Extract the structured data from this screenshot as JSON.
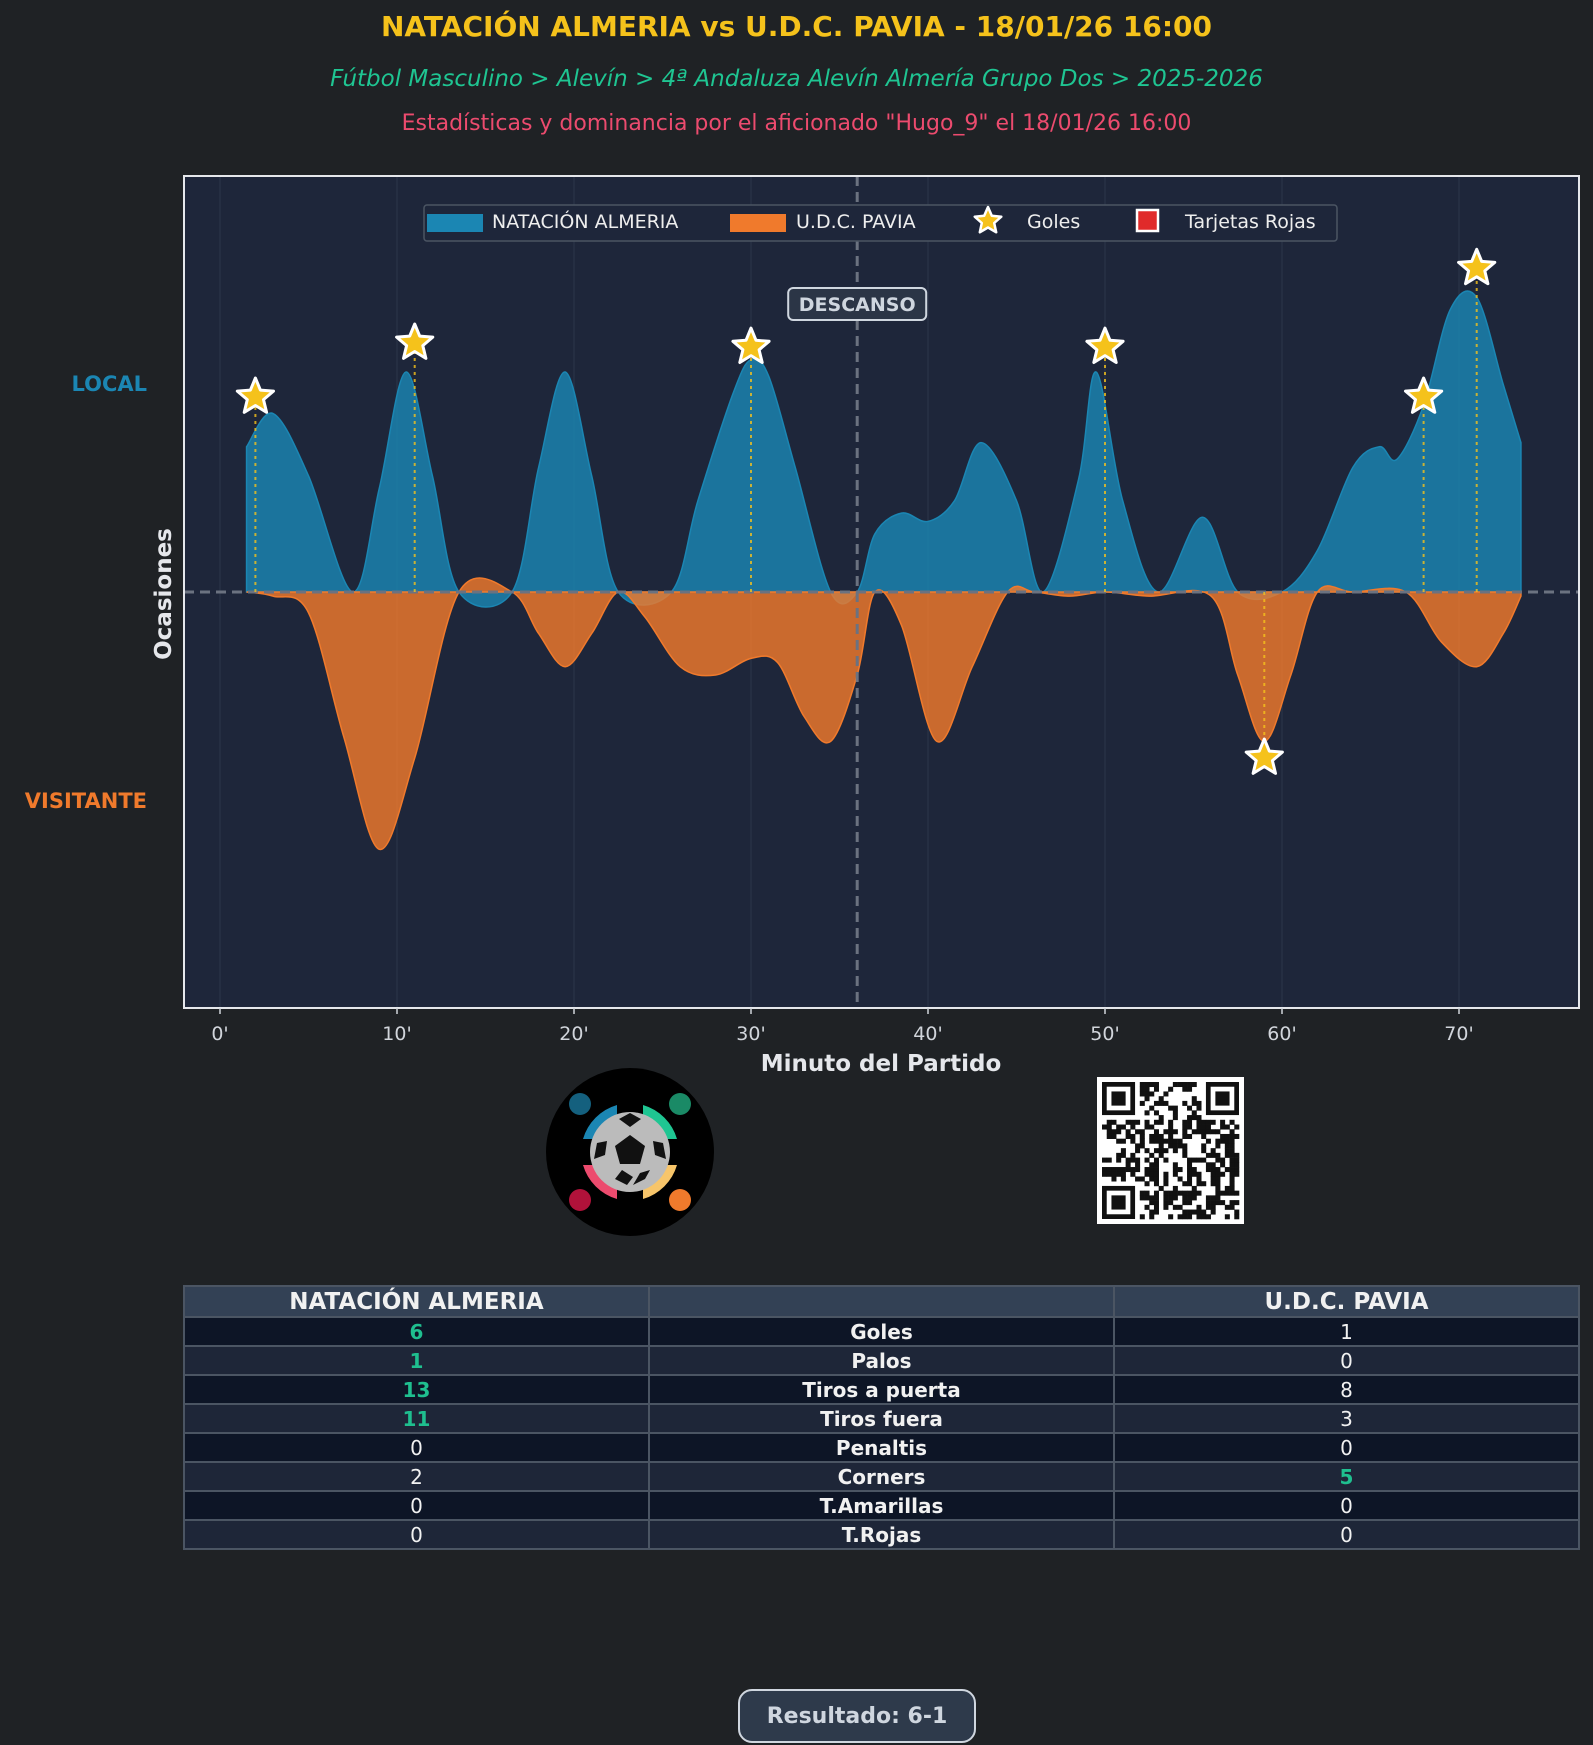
{
  "header": {
    "title": "NATACIÓN ALMERIA vs U.D.C. PAVIA - 18/01/26 16:00",
    "breadcrumb": "Fútbol Masculino > Alevín > 4ª Andaluza Alevín Almería Grupo Dos > 2025-2026",
    "credit": "Estadísticas y dominancia por el aficionado \"Hugo_9\" el 18/01/26 16:00"
  },
  "colors": {
    "home": "#1b86b3",
    "away": "#f07a2c",
    "goal": "#f5c21b",
    "red_card": "#e02a2a",
    "plot_bg": "#1e263a",
    "win_text": "#1fbf8f"
  },
  "chart_data": {
    "type": "area",
    "title": "",
    "xlabel": "Minuto del Partido",
    "ylabel": "Ocasiones",
    "xlim": [
      -2,
      77
    ],
    "ylim": [
      -1.0,
      1.0
    ],
    "xticks": [
      0,
      10,
      20,
      30,
      40,
      50,
      60,
      70
    ],
    "xtick_labels": [
      "0'",
      "10'",
      "20'",
      "30'",
      "40'",
      "50'",
      "60'",
      "70'"
    ],
    "side_labels": {
      "home": "LOCAL",
      "away": "VISITANTE"
    },
    "halftime_minute": 36,
    "halftime_label": "DESCANSO",
    "legend": [
      "NATACIÓN ALMERIA",
      "U.D.C. PAVIA",
      "Goles",
      "Tarjetas Rojas"
    ],
    "legend_position": "top-center",
    "series": [
      {
        "name": "NATACIÓN ALMERIA",
        "x": [
          1.5,
          3,
          5,
          7.5,
          9,
          10.5,
          12,
          13.5,
          16.5,
          18,
          19.5,
          21,
          22.5,
          25.5,
          27,
          29,
          30,
          31,
          32.5,
          34.5,
          36,
          37,
          38.5,
          40,
          41.5,
          43,
          45,
          46.5,
          48.5,
          49.5,
          51,
          53,
          55.5,
          57.5,
          60,
          62,
          64,
          65.5,
          66.5,
          68,
          69.5,
          71,
          72.5,
          73.5
        ],
        "values": [
          0.35,
          0.43,
          0.28,
          0.0,
          0.25,
          0.53,
          0.28,
          0.0,
          0.0,
          0.3,
          0.53,
          0.28,
          0.0,
          0.0,
          0.22,
          0.48,
          0.56,
          0.52,
          0.3,
          0.0,
          0.0,
          0.14,
          0.19,
          0.17,
          0.22,
          0.36,
          0.22,
          0.0,
          0.27,
          0.53,
          0.22,
          0.0,
          0.18,
          0.0,
          0.0,
          0.1,
          0.3,
          0.35,
          0.32,
          0.45,
          0.68,
          0.71,
          0.5,
          0.36
        ],
        "color": "#1b86b3"
      },
      {
        "name": "U.D.C. PAVIA",
        "x": [
          1.5,
          3,
          5,
          7,
          9,
          11,
          13.5,
          16.5,
          18,
          19.5,
          21,
          22.5,
          24,
          26,
          28,
          30,
          31.5,
          33,
          34.5,
          36,
          37,
          38.5,
          40.5,
          42.5,
          44.5,
          46,
          48,
          50,
          52.5,
          56,
          57.5,
          59,
          60.5,
          62,
          64,
          67,
          69,
          71,
          72.5,
          73.5
        ],
        "values": [
          0.0,
          -0.01,
          -0.05,
          -0.35,
          -0.62,
          -0.4,
          0.0,
          0.0,
          -0.1,
          -0.18,
          -0.1,
          0.0,
          -0.06,
          -0.18,
          -0.2,
          -0.16,
          -0.17,
          -0.3,
          -0.36,
          -0.2,
          0.0,
          -0.08,
          -0.36,
          -0.18,
          0.0,
          0.0,
          -0.01,
          0.0,
          -0.01,
          -0.01,
          -0.2,
          -0.36,
          -0.2,
          0.0,
          0.0,
          0.0,
          -0.12,
          -0.18,
          -0.1,
          -0.01
        ],
        "color": "#f07a2c"
      }
    ],
    "goals": [
      {
        "team": "NATACIÓN ALMERIA",
        "minute": 2,
        "value": 0.47
      },
      {
        "team": "NATACIÓN ALMERIA",
        "minute": 11,
        "value": 0.6
      },
      {
        "team": "NATACIÓN ALMERIA",
        "minute": 30,
        "value": 0.59
      },
      {
        "team": "NATACIÓN ALMERIA",
        "minute": 50,
        "value": 0.59
      },
      {
        "team": "NATACIÓN ALMERIA",
        "minute": 68,
        "value": 0.47
      },
      {
        "team": "NATACIÓN ALMERIA",
        "minute": 71,
        "value": 0.78
      },
      {
        "team": "U.D.C. PAVIA",
        "minute": 59,
        "value": -0.4
      }
    ],
    "red_cards": []
  },
  "stats": {
    "home_team": "NATACIÓN ALMERIA",
    "away_team": "U.D.C. PAVIA",
    "rows": [
      {
        "label": "Goles",
        "home": "6",
        "away": "1",
        "winner": "home"
      },
      {
        "label": "Palos",
        "home": "1",
        "away": "0",
        "winner": "home"
      },
      {
        "label": "Tiros a puerta",
        "home": "13",
        "away": "8",
        "winner": "home"
      },
      {
        "label": "Tiros fuera",
        "home": "11",
        "away": "3",
        "winner": "home"
      },
      {
        "label": "Penaltis",
        "home": "0",
        "away": "0",
        "winner": "none"
      },
      {
        "label": "Corners",
        "home": "2",
        "away": "5",
        "winner": "away"
      },
      {
        "label": "T.Amarillas",
        "home": "0",
        "away": "0",
        "winner": "none"
      },
      {
        "label": "T.Rojas",
        "home": "0",
        "away": "0",
        "winner": "none"
      }
    ]
  },
  "footer": {
    "result": "Resultado: 6-1"
  },
  "icons": {
    "logo": "soccer-community-logo-icon",
    "qr": "qr-code-icon"
  }
}
